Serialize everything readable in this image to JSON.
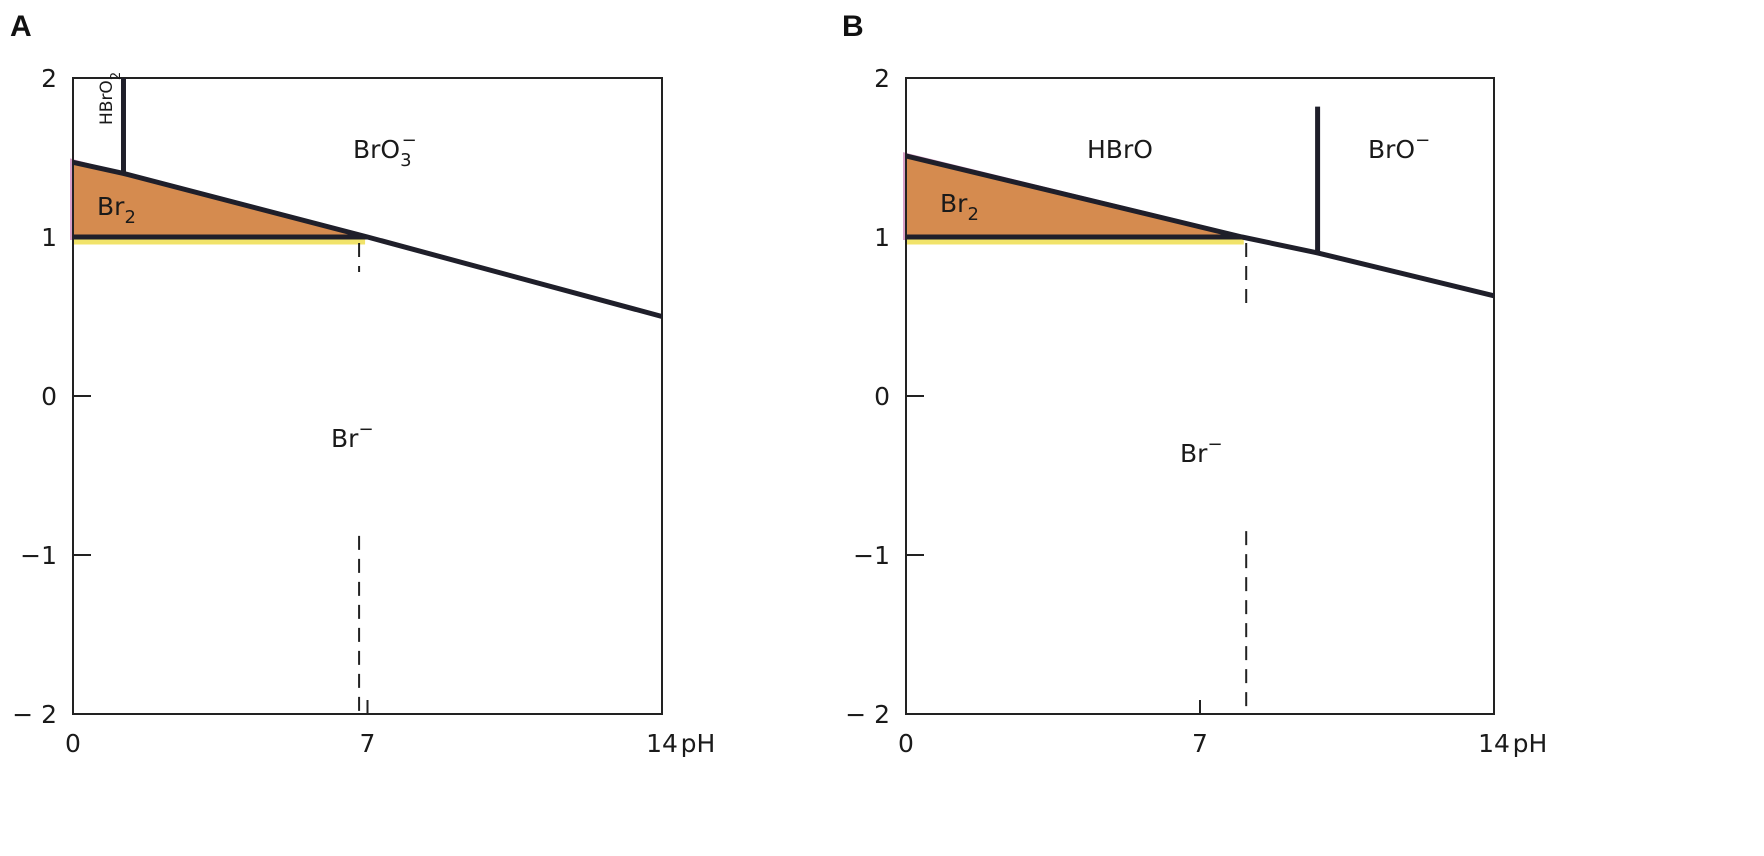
{
  "chart_data": [
    {
      "type": "line",
      "panel_label": "A",
      "xlabel": "pH",
      "ylabel": "",
      "xlim": [
        0,
        14
      ],
      "ylim": [
        -2,
        2
      ],
      "x_ticks": [
        0,
        7,
        14
      ],
      "y_ticks": [
        2,
        1,
        0,
        -1,
        -2
      ],
      "y_tick_labels": [
        "2",
        "1",
        "0",
        "−1",
        "− 2"
      ],
      "boundaries": [
        {
          "name": "upper",
          "points": [
            [
              0,
              1.47
            ],
            [
              1.2,
              1.4
            ],
            [
              7.0,
              1.0
            ],
            [
              14,
              0.5
            ]
          ]
        },
        {
          "name": "br2_floor",
          "points": [
            [
              0,
              1.0
            ],
            [
              7.0,
              1.0
            ]
          ]
        },
        {
          "name": "acid_vertical",
          "points": [
            [
              1.2,
              1.4
            ],
            [
              1.2,
              2.0
            ]
          ]
        },
        {
          "name": "dashed",
          "points": [
            [
              6.8,
              1.0
            ],
            [
              6.8,
              -2.0
            ]
          ],
          "style": "dashed"
        }
      ],
      "shaded_region": [
        [
          0,
          1.47
        ],
        [
          6.8,
          1.0
        ],
        [
          0,
          1.0
        ]
      ],
      "species": [
        {
          "label": "HBrO",
          "sub": "2",
          "sup": ""
        },
        {
          "label": "BrO",
          "sub": "3",
          "sup": "−"
        },
        {
          "label": "Br",
          "sub": "2",
          "sup": ""
        },
        {
          "label": "Br",
          "sub": "",
          "sup": "−"
        }
      ]
    },
    {
      "type": "line",
      "panel_label": "B",
      "xlabel": "pH",
      "ylabel": "",
      "xlim": [
        0,
        14
      ],
      "ylim": [
        -2,
        2
      ],
      "x_ticks": [
        0,
        7,
        14
      ],
      "y_ticks": [
        2,
        1,
        0,
        -1,
        -2
      ],
      "y_tick_labels": [
        "2",
        "1",
        "0",
        "−1",
        "− 2"
      ],
      "boundaries": [
        {
          "name": "upper",
          "points": [
            [
              0,
              1.51
            ],
            [
              8.0,
              1.0
            ],
            [
              9.8,
              0.9
            ],
            [
              14,
              0.63
            ]
          ]
        },
        {
          "name": "br2_floor",
          "points": [
            [
              0,
              1.0
            ],
            [
              8.0,
              1.0
            ]
          ]
        },
        {
          "name": "pka_vertical",
          "points": [
            [
              9.8,
              0.9
            ],
            [
              9.8,
              1.82
            ]
          ]
        },
        {
          "name": "dashed",
          "points": [
            [
              8.1,
              1.0
            ],
            [
              8.1,
              -2.0
            ]
          ],
          "style": "dashed"
        }
      ],
      "shaded_region": [
        [
          0,
          1.51
        ],
        [
          7.9,
          1.0
        ],
        [
          0,
          1.0
        ]
      ],
      "species": [
        {
          "label": "HBrO",
          "sub": "",
          "sup": ""
        },
        {
          "label": "BrO",
          "sub": "",
          "sup": "−"
        },
        {
          "label": "Br",
          "sub": "2",
          "sup": ""
        },
        {
          "label": "Br",
          "sub": "",
          "sup": "−"
        }
      ]
    }
  ]
}
